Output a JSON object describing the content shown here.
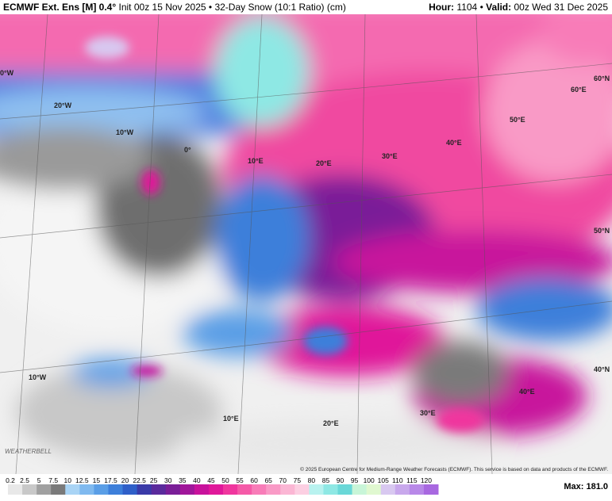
{
  "header": {
    "model": "ECMWF Ext. Ens [M] 0.4°",
    "init": "Init 00z 15 Nov 2025 • 32-Day Snow (10:1 Ratio) (cm)",
    "hour_label": "Hour:",
    "hour": "1104",
    "sep": "•",
    "valid_label": "Valid:",
    "valid": "00z Wed 31 Dec 2025"
  },
  "map": {
    "labels": [
      "0°W",
      "20°W",
      "10°W",
      "0°",
      "10°E",
      "20°E",
      "30°E",
      "40°E",
      "50°E",
      "60°E",
      "60°N",
      "50°N",
      "40°N",
      "10°W",
      "10°E",
      "20°E",
      "30°E",
      "40°E"
    ],
    "copyright": "© 2025 European Centre for Medium-Range Weather Forecasts (ECMWF). This service is based on data and products of the ECMWF.",
    "brand": "WEATHERBELL"
  },
  "legend": {
    "labels": [
      0.2,
      2.5,
      5,
      7.5,
      10,
      12.5,
      15,
      17.5,
      20,
      22.5,
      25,
      30,
      35,
      40,
      45,
      50,
      55,
      60,
      65,
      70,
      75,
      80,
      85,
      90,
      95,
      100,
      105,
      110,
      115,
      120
    ],
    "colors": [
      "#e8e8e8",
      "#c8c8c8",
      "#a0a0a0",
      "#7a7a7a",
      "#a9d4f5",
      "#7fb9ef",
      "#5a9ee6",
      "#3d7fda",
      "#2f5fc8",
      "#3a3aa8",
      "#5a2a9c",
      "#7a1e98",
      "#a0169a",
      "#c8129c",
      "#e0189a",
      "#f0369e",
      "#f55aa8",
      "#f87cb8",
      "#f99ac6",
      "#fbb6d4",
      "#fccfe2",
      "#b8f2ef",
      "#8ee8e4",
      "#6ad8d8",
      "#c8f5d8",
      "#e0f8d0",
      "#d8c8f0",
      "#c8a8ec",
      "#b888e8",
      "#a868e0"
    ],
    "max": "Max: 181.0"
  }
}
